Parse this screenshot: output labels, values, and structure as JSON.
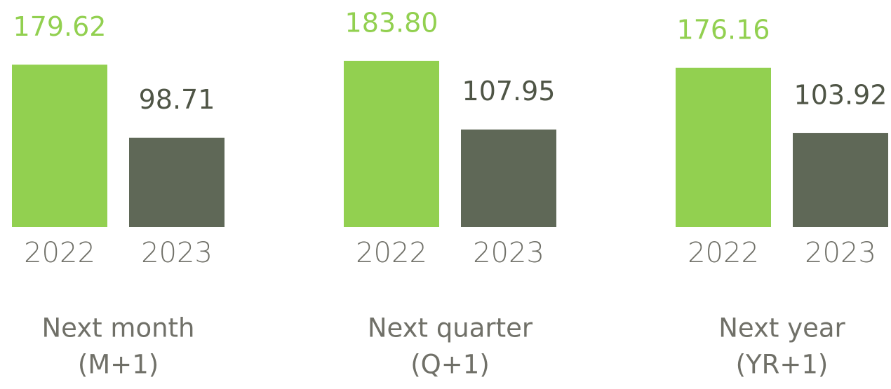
{
  "chart_data": [
    {
      "type": "bar",
      "title": "Next month",
      "subtitle": "(M+1)",
      "categories": [
        "2022",
        "2023"
      ],
      "values": [
        179.62,
        98.71
      ],
      "value_labels": [
        "179.62",
        "98.71"
      ],
      "colors": [
        "#92d050",
        "#5f6857"
      ]
    },
    {
      "type": "bar",
      "title": "Next quarter",
      "subtitle": "(Q+1)",
      "categories": [
        "2022",
        "2023"
      ],
      "values": [
        183.8,
        107.95
      ],
      "value_labels": [
        "183.80",
        "107.95"
      ],
      "colors": [
        "#92d050",
        "#5f6857"
      ]
    },
    {
      "type": "bar",
      "title": "Next year",
      "subtitle": "(YR+1)",
      "categories": [
        "2022",
        "2023"
      ],
      "values": [
        176.16,
        103.92
      ],
      "value_labels": [
        "176.16",
        "103.92"
      ],
      "colors": [
        "#92d050",
        "#5f6857"
      ]
    }
  ]
}
